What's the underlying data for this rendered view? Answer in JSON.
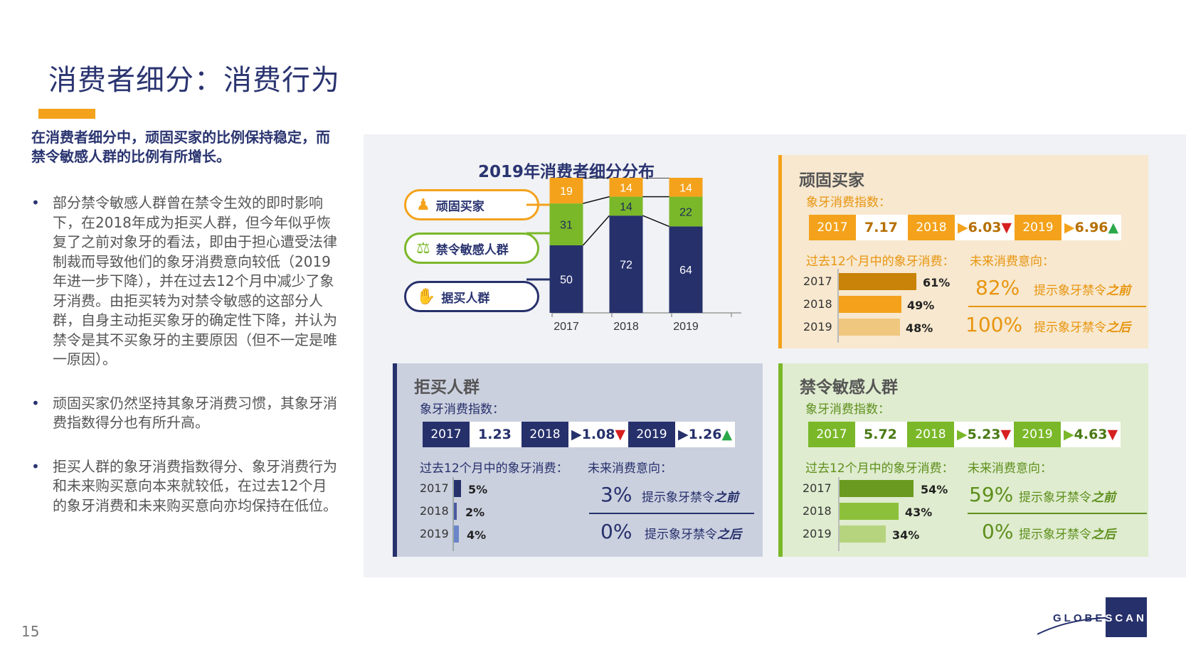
{
  "page": {
    "title": "消费者细分：消费行为",
    "lead": "在消费者细分中，顽固买家的比例保持稳定，而禁令敏感人群的比例有所增长。",
    "bullets": [
      "部分禁令敏感人群曾在禁令生效的即时影响下，在2018年成为拒买人群，但今年似乎恢复了之前对象牙的看法，即由于担心遭受法律制裁而导致他们的象牙消费意向较低（2019年进一步下降），并在过去12个月中减少了象牙消费。由拒买转为对禁令敏感的这部分人群，自身主动拒买象牙的确定性下降，并认为禁令是其不买象牙的主要原因（但不一定是唯一原因）。",
      "顽固买家仍然坚持其象牙消费习惯，其象牙消费指数得分也有所升高。",
      "拒买人群的象牙消费指数得分、象牙消费行为和未来购买意向本来就较低，在过去12个月的象牙消费和未来购买意向亦均保持在低位。"
    ],
    "page_number": "15",
    "logo_text": "GLOBESCAN"
  },
  "chart_data": {
    "type": "bar",
    "stacked": true,
    "title": "2019年消费者细分分布",
    "categories": [
      "2017",
      "2018",
      "2019"
    ],
    "series": [
      {
        "name": "拒买人群",
        "values": [
          50,
          72,
          64
        ],
        "color": "#26306b",
        "label_color": "#ffffff"
      },
      {
        "name": "禁令敏感人群",
        "values": [
          31,
          14,
          22
        ],
        "color": "#7ab829",
        "label_color": "#1e2a5a"
      },
      {
        "name": "顽固买家",
        "values": [
          19,
          14,
          14
        ],
        "color": "#f4a21b",
        "label_color": "#ffffff"
      }
    ]
  },
  "legend_pills": [
    {
      "label": "顽固买家",
      "icon": "stubborn-buyer-icon",
      "glyph": "♟",
      "color": "#f4a21b"
    },
    {
      "label": "禁令敏感人群",
      "icon": "ban-sensitive-icon",
      "glyph": "⚖",
      "color": "#7ab829"
    },
    {
      "label": "据买人群",
      "icon": "rejector-icon",
      "glyph": "✋",
      "color": "#26306b"
    }
  ],
  "boxes": {
    "stubborn": {
      "heading": "顽固买家",
      "index_label": "象牙消费指数：",
      "index": [
        {
          "year": "2017",
          "value": "7.17",
          "arrow": ""
        },
        {
          "year": "2018",
          "value": "6.03",
          "arrow": "▼"
        },
        {
          "year": "2019",
          "value": "6.96",
          "arrow": "▲"
        }
      ],
      "past_label": "过去12个月中的象牙消费：",
      "future_label": "未来消费意向：",
      "past": [
        {
          "year": "2017",
          "pct": "61%",
          "value": 61
        },
        {
          "year": "2018",
          "pct": "49%",
          "value": 49
        },
        {
          "year": "2019",
          "pct": "48%",
          "value": 48
        }
      ],
      "future": [
        {
          "pct": "82%",
          "text": "提示象牙禁令",
          "em": "之前"
        },
        {
          "pct": "100%",
          "text": "提示象牙禁令",
          "em": "之后"
        }
      ]
    },
    "rejector": {
      "heading": "拒买人群",
      "index_label": "象牙消费指数：",
      "index": [
        {
          "year": "2017",
          "value": "1.23",
          "arrow": ""
        },
        {
          "year": "2018",
          "value": "1.08",
          "arrow": "▼"
        },
        {
          "year": "2019",
          "value": "1.26",
          "arrow": "▲"
        }
      ],
      "past_label": "过去12个月中的象牙消费：",
      "future_label": "未来消费意向：",
      "past": [
        {
          "year": "2017",
          "pct": "5%",
          "value": 5
        },
        {
          "year": "2018",
          "pct": "2%",
          "value": 2
        },
        {
          "year": "2019",
          "pct": "4%",
          "value": 4
        }
      ],
      "future": [
        {
          "pct": "3%",
          "text": "提示象牙禁令",
          "em": "之前"
        },
        {
          "pct": "0%",
          "text": "提示象牙禁令",
          "em": "之后"
        }
      ]
    },
    "sensitive": {
      "heading": "禁令敏感人群",
      "index_label": "象牙消费指数：",
      "index": [
        {
          "year": "2017",
          "value": "5.72",
          "arrow": ""
        },
        {
          "year": "2018",
          "value": "5.23",
          "arrow": "▼"
        },
        {
          "year": "2019",
          "value": "4.63",
          "arrow": "▼"
        }
      ],
      "past_label": "过去12个月中的象牙消费：",
      "future_label": "未来消费意向：",
      "past": [
        {
          "year": "2017",
          "pct": "54%",
          "value": 54
        },
        {
          "year": "2018",
          "pct": "43%",
          "value": 43
        },
        {
          "year": "2019",
          "pct": "34%",
          "value": 34
        }
      ],
      "future": [
        {
          "pct": "59%",
          "text": "提示象牙禁令",
          "em": "之前"
        },
        {
          "pct": "0%",
          "text": "提示象牙禁令",
          "em": "之后"
        }
      ]
    }
  },
  "colors": {
    "navy": "#26306b",
    "orange": "#f4a21b",
    "green": "#7ab829",
    "arrow_down": "#d62020",
    "arrow_up": "#2aa84a"
  }
}
